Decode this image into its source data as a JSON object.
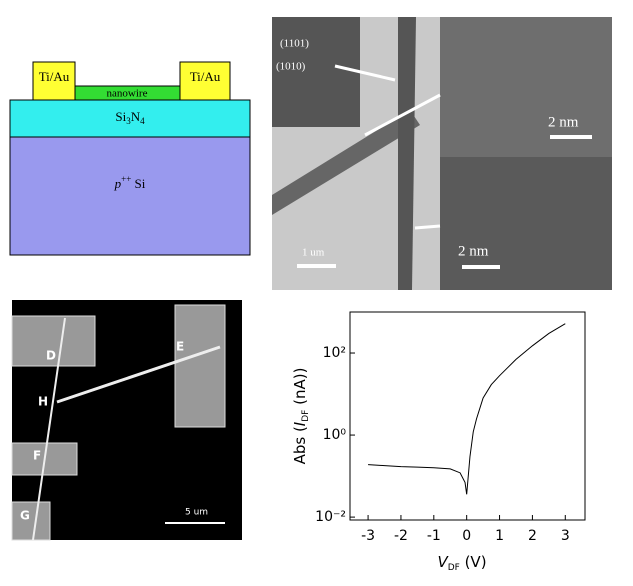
{
  "schematic": {
    "pad_left": "Ti/Au",
    "pad_right": "Ti/Au",
    "wire": "nanowire",
    "insulator": [
      "Si",
      "3",
      "N",
      "4"
    ],
    "substrate": [
      "p",
      "++",
      " Si"
    ]
  },
  "tem": {
    "diffraction": [
      "(1101)",
      "(1010)"
    ],
    "scale_top": "2 nm",
    "scale_bottom": "2 nm",
    "scale_main": "1 um"
  },
  "sem": {
    "labels": [
      "D",
      "E",
      "H",
      "F",
      "G"
    ],
    "scale": "5 um"
  },
  "chart_data": {
    "type": "line",
    "log_y": true,
    "color": "#000000",
    "x_label": [
      "V",
      "DF",
      " (V)"
    ],
    "y_label": [
      "Abs (",
      "I",
      "DF",
      " (nA))"
    ],
    "x": [
      -3,
      -2.5,
      -2,
      -1.5,
      -1,
      -0.5,
      -0.2,
      -0.05,
      0,
      0.1,
      0.2,
      0.3,
      0.5,
      0.75,
      1,
      1.5,
      2,
      2.5,
      3
    ],
    "values": [
      0.19,
      0.18,
      0.17,
      0.165,
      0.16,
      0.15,
      0.12,
      0.07,
      0.036,
      0.3,
      1.2,
      2.5,
      8,
      17,
      28,
      70,
      150,
      300,
      520
    ],
    "xlim": [
      -3.55,
      3.6
    ],
    "ylim": [
      0.0085,
      1000
    ],
    "xticks": [
      -3,
      -2,
      -1,
      0,
      1,
      2,
      3
    ],
    "yticks": [
      {
        "value": 0.01,
        "label": "10⁻²"
      },
      {
        "value": 1,
        "label": "10⁰"
      },
      {
        "value": 100,
        "label": "10²"
      }
    ]
  }
}
